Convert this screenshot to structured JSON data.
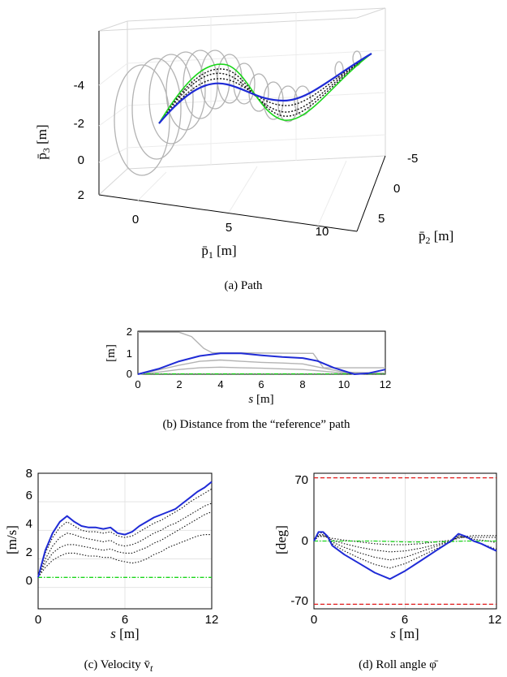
{
  "colors": {
    "blue": "#1f2bd6",
    "green": "#1bd61b",
    "gray": "#b3b3b3",
    "dotted": "#111111",
    "limit": "#e01b1b",
    "grid": "#e4e4e4"
  },
  "captions": {
    "a": "(a) Path",
    "b": "(b) Distance from the “reference” path",
    "c": "(c) Velocity v̄",
    "c_sub": "t",
    "d": "(d) Roll angle φ̄"
  },
  "chart_data": [
    {
      "id": "a",
      "type": "line",
      "title": "",
      "x_label": "p̄",
      "x_label_sub": "1",
      "x_label_unit": " [m]",
      "y_label": "p̄",
      "y_label_sub": "2",
      "y_label_unit": " [m]",
      "z_label": "p̄",
      "z_label_sub": "3",
      "z_label_unit": " [m]",
      "x_ticks": [
        "0",
        "5",
        "10"
      ],
      "y_ticks": [
        "-5",
        "0",
        "5"
      ],
      "z_ticks": [
        "-4",
        "-2",
        "0",
        "2"
      ],
      "x_range": [
        -2,
        13
      ],
      "y_range": [
        -6,
        6
      ],
      "z_range": [
        -5,
        2
      ],
      "grid": true,
      "series": [
        {
          "style": "blue",
          "x": [
            1,
            2,
            3,
            4,
            5,
            6,
            7,
            8,
            9,
            10,
            11,
            12
          ],
          "y": [
            0.2,
            0.9,
            0.6,
            -0.3,
            -0.8,
            -0.5,
            0.5,
            1.2,
            0.6,
            -0.2,
            -0.8,
            -1.2
          ],
          "z": [
            -1.5,
            -2.4,
            -3.2,
            -3.6,
            -3.3,
            -2.6,
            -2.4,
            -2.8,
            -3.4,
            -4.0,
            -4.5,
            -5.0
          ]
        },
        {
          "style": "green",
          "x": [
            1,
            2,
            3,
            4,
            5,
            6,
            7,
            8,
            9,
            10,
            11,
            12
          ],
          "y": [
            0.2,
            1.0,
            0.8,
            -0.5,
            -1.3,
            -0.9,
            0.6,
            1.9,
            1.0,
            -0.2,
            -0.8,
            -1.2
          ],
          "z": [
            -1.5,
            -2.6,
            -3.6,
            -4.2,
            -3.9,
            -2.9,
            -2.2,
            -2.3,
            -3.0,
            -3.9,
            -4.5,
            -5.0
          ]
        }
      ]
    },
    {
      "id": "b",
      "type": "line",
      "title": "",
      "xlabel": "s",
      "xlabel_unit": " [m]",
      "ylabel": "[m]",
      "xlim": [
        0,
        12
      ],
      "ylim": [
        0,
        2
      ],
      "x_ticks": [
        "0",
        "2",
        "4",
        "6",
        "8",
        "10",
        "12"
      ],
      "y_ticks": [
        "0",
        "1",
        "2"
      ],
      "grid": false,
      "series": [
        {
          "style": "gray",
          "x": [
            0,
            2,
            2.6,
            3.2,
            3.6,
            8.5,
            9.0,
            12
          ],
          "y": [
            1.95,
            1.95,
            1.75,
            1.2,
            1.0,
            0.97,
            0.3,
            0.3
          ]
        },
        {
          "style": "blue",
          "x": [
            0,
            1,
            2,
            3,
            4,
            5,
            6,
            7,
            8,
            8.7,
            9.5,
            10.5,
            11.2,
            12
          ],
          "y": [
            0.0,
            0.25,
            0.6,
            0.85,
            0.97,
            0.97,
            0.88,
            0.8,
            0.75,
            0.62,
            0.3,
            0.0,
            0.05,
            0.22
          ]
        },
        {
          "style": "gray",
          "x": [
            0,
            1,
            2,
            3,
            4,
            5,
            6,
            7,
            8,
            9,
            10,
            12
          ],
          "y": [
            0.0,
            0.2,
            0.42,
            0.6,
            0.66,
            0.6,
            0.55,
            0.52,
            0.48,
            0.28,
            0.1,
            0.05
          ]
        },
        {
          "style": "gray",
          "x": [
            0,
            1,
            2,
            3,
            4,
            5,
            6,
            7,
            8,
            9,
            10,
            12
          ],
          "y": [
            0.0,
            0.1,
            0.22,
            0.3,
            0.33,
            0.3,
            0.28,
            0.25,
            0.22,
            0.14,
            0.05,
            0.05
          ]
        },
        {
          "style": "green",
          "x": [
            0,
            12
          ],
          "y": [
            0.02,
            0.02
          ]
        }
      ]
    },
    {
      "id": "c",
      "type": "line",
      "title": "",
      "xlabel": "s",
      "xlabel_unit": " [m]",
      "ylabel": "[m/s]",
      "xlim": [
        0,
        12
      ],
      "ylim": [
        -1.5,
        8
      ],
      "x_ticks": [
        "0",
        "6",
        "12"
      ],
      "y_ticks": [
        "0",
        "2",
        "4",
        "6",
        "8"
      ],
      "grid": true,
      "series": [
        {
          "style": "blue",
          "x": [
            0,
            0.5,
            1,
            1.5,
            2,
            2.5,
            3,
            3.5,
            4,
            4.5,
            5,
            5.5,
            6,
            6.5,
            7,
            7.5,
            8,
            8.5,
            9,
            9.5,
            10,
            10.5,
            11,
            11.5,
            12
          ],
          "y": [
            0.7,
            2.6,
            3.8,
            4.6,
            5.0,
            4.6,
            4.3,
            4.2,
            4.2,
            4.1,
            4.2,
            3.8,
            3.7,
            3.9,
            4.3,
            4.6,
            4.9,
            5.1,
            5.3,
            5.5,
            5.9,
            6.3,
            6.7,
            7.0,
            7.4
          ]
        },
        {
          "style": "dotted",
          "x": [
            0,
            0.5,
            1,
            1.5,
            2,
            2.5,
            3,
            3.5,
            4,
            4.5,
            5,
            5.5,
            6,
            6.5,
            7,
            7.5,
            8,
            8.5,
            9,
            9.5,
            10,
            10.5,
            11,
            11.5,
            12
          ],
          "y": [
            0.7,
            2.4,
            3.5,
            4.2,
            4.6,
            4.3,
            4.0,
            3.9,
            3.9,
            3.8,
            3.9,
            3.6,
            3.5,
            3.6,
            3.9,
            4.2,
            4.5,
            4.7,
            5.0,
            5.3,
            5.6,
            6.0,
            6.3,
            6.6,
            6.9
          ]
        },
        {
          "style": "dotted",
          "x": [
            0,
            0.5,
            1,
            1.5,
            2,
            2.5,
            3,
            3.5,
            4,
            4.5,
            5,
            5.5,
            6,
            6.5,
            7,
            7.5,
            8,
            8.5,
            9,
            9.5,
            10,
            10.5,
            11,
            11.5,
            12
          ],
          "y": [
            0.7,
            2.0,
            2.9,
            3.5,
            3.8,
            3.7,
            3.5,
            3.4,
            3.3,
            3.2,
            3.3,
            3.0,
            2.9,
            3.0,
            3.2,
            3.5,
            3.8,
            4.0,
            4.3,
            4.5,
            4.8,
            5.1,
            5.4,
            5.7,
            5.9
          ]
        },
        {
          "style": "dotted",
          "x": [
            0,
            0.5,
            1,
            1.5,
            2,
            2.5,
            3,
            3.5,
            4,
            4.5,
            5,
            5.5,
            6,
            6.5,
            7,
            7.5,
            8,
            8.5,
            9,
            9.5,
            10,
            10.5,
            11,
            11.5,
            12
          ],
          "y": [
            0.7,
            1.7,
            2.4,
            2.8,
            3.0,
            3.0,
            2.9,
            2.8,
            2.7,
            2.6,
            2.7,
            2.5,
            2.4,
            2.4,
            2.6,
            2.8,
            3.1,
            3.3,
            3.6,
            3.9,
            4.2,
            4.5,
            4.8,
            5.1,
            5.3
          ]
        },
        {
          "style": "dotted",
          "x": [
            0,
            0.5,
            1,
            1.5,
            2,
            2.5,
            3,
            3.5,
            4,
            4.5,
            5,
            5.5,
            6,
            6.5,
            7,
            7.5,
            8,
            8.5,
            9,
            9.5,
            10,
            10.5,
            11,
            11.5,
            12
          ],
          "y": [
            0.7,
            1.4,
            1.9,
            2.2,
            2.4,
            2.4,
            2.3,
            2.2,
            2.2,
            2.1,
            2.1,
            1.9,
            1.8,
            1.7,
            1.8,
            2.0,
            2.3,
            2.5,
            2.8,
            3.0,
            3.2,
            3.4,
            3.6,
            3.7,
            3.7
          ]
        },
        {
          "style": "green",
          "x": [
            0,
            12
          ],
          "y": [
            0.7,
            0.7
          ]
        }
      ]
    },
    {
      "id": "d",
      "type": "line",
      "title": "",
      "xlabel": "s",
      "xlabel_unit": " [m]",
      "ylabel": "[deg]",
      "xlim": [
        0,
        12
      ],
      "ylim": [
        -75,
        75
      ],
      "x_ticks": [
        "0",
        "6",
        "12"
      ],
      "y_ticks": [
        "70",
        "0",
        "-70"
      ],
      "grid": true,
      "series": [
        {
          "style": "limit",
          "x": [
            0,
            12
          ],
          "y": [
            70,
            70
          ]
        },
        {
          "style": "limit",
          "x": [
            0,
            12
          ],
          "y": [
            -70,
            -70
          ]
        },
        {
          "style": "blue",
          "x": [
            0,
            0.3,
            0.6,
            0.9,
            1.2,
            2,
            3,
            4,
            5,
            6,
            7,
            8,
            9,
            9.5,
            10,
            10.5,
            11,
            11.5,
            12
          ],
          "y": [
            0,
            10,
            10,
            5,
            -5,
            -15,
            -25,
            -35,
            -42,
            -33,
            -22,
            -11,
            0,
            8,
            5,
            0,
            -3,
            -7,
            -11
          ]
        },
        {
          "style": "dotted",
          "x": [
            0,
            0.3,
            0.6,
            0.9,
            1.2,
            2,
            3,
            4,
            5,
            6,
            7,
            8,
            9,
            9.5,
            10,
            10.5,
            11,
            11.5,
            12
          ],
          "y": [
            0,
            9,
            9,
            5,
            -3,
            -11,
            -19,
            -26,
            -30,
            -25,
            -17,
            -9,
            -1,
            6,
            4,
            0,
            -3,
            -6,
            -9
          ]
        },
        {
          "style": "dotted",
          "x": [
            0,
            0.3,
            0.6,
            0.9,
            1.2,
            2,
            3,
            4,
            5,
            6,
            7,
            8,
            9,
            9.5,
            10,
            10.5,
            11,
            11.5,
            12
          ],
          "y": [
            0,
            7,
            7,
            4,
            -1,
            -7,
            -13,
            -18,
            -21,
            -18,
            -12,
            -6,
            0,
            5,
            4,
            2,
            1,
            0,
            -2
          ]
        },
        {
          "style": "dotted",
          "x": [
            0,
            0.3,
            0.6,
            0.9,
            1.2,
            2,
            3,
            4,
            5,
            6,
            7,
            8,
            9,
            9.5,
            10,
            10.5,
            11,
            11.5,
            12
          ],
          "y": [
            0,
            6,
            6,
            4,
            1,
            -3,
            -7,
            -10,
            -12,
            -11,
            -8,
            -4,
            0,
            4,
            4,
            4,
            4,
            4,
            4
          ]
        },
        {
          "style": "dotted",
          "x": [
            0,
            0.3,
            0.6,
            0.9,
            1.2,
            2,
            3,
            4,
            5,
            6,
            7,
            8,
            9,
            9.5,
            10,
            10.5,
            11,
            11.5,
            12
          ],
          "y": [
            0,
            5,
            5,
            4,
            3,
            1,
            -1,
            -3,
            -4,
            -4,
            -3,
            -1,
            1,
            3,
            5,
            6,
            6,
            6,
            6
          ]
        },
        {
          "style": "green",
          "x": [
            0,
            2,
            4,
            6,
            8,
            10,
            12
          ],
          "y": [
            0,
            0,
            0,
            -1,
            -1,
            0,
            0
          ]
        }
      ]
    }
  ]
}
